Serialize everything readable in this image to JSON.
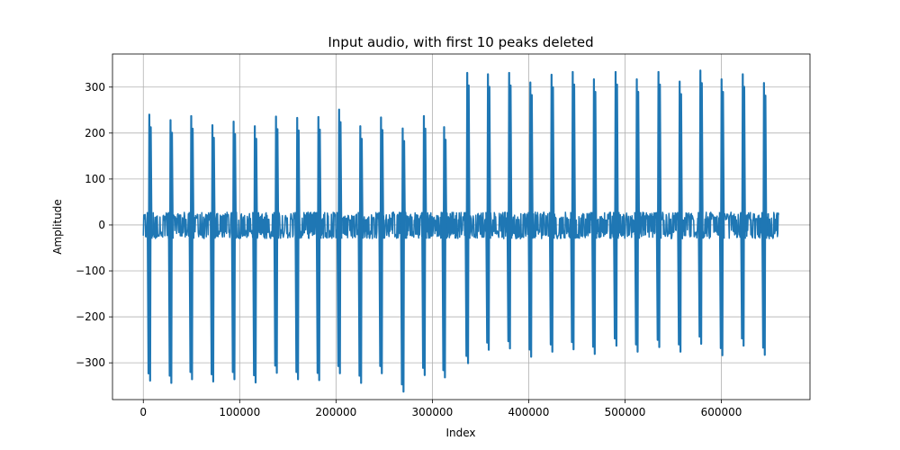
{
  "chart_data": {
    "type": "line",
    "title": "Input audio, with first 10 peaks deleted",
    "xlabel": "Index",
    "ylabel": "Amplitude",
    "xlim": [
      -32000,
      692000
    ],
    "ylim": [
      -380,
      372
    ],
    "xticks": [
      0,
      100000,
      200000,
      300000,
      400000,
      500000,
      600000
    ],
    "xtick_labels": [
      "0",
      "100000",
      "200000",
      "300000",
      "400000",
      "500000",
      "600000"
    ],
    "yticks": [
      -300,
      -200,
      -100,
      0,
      100,
      200,
      300
    ],
    "ytick_labels": [
      "−300",
      "−200",
      "−100",
      "0",
      "100",
      "200",
      "300"
    ],
    "grid": true,
    "x_range": [
      0,
      660000
    ],
    "noise_band": [
      -30,
      28
    ],
    "series": [
      {
        "color": "#1f77b4",
        "peaks": [
          {
            "x": 6500,
            "max": 240,
            "min": -323
          },
          {
            "x": 28500,
            "max": 228,
            "min": -328
          },
          {
            "x": 50000,
            "max": 237,
            "min": -320
          },
          {
            "x": 72000,
            "max": 217,
            "min": -325
          },
          {
            "x": 94000,
            "max": 225,
            "min": -320
          },
          {
            "x": 116000,
            "max": 215,
            "min": -327
          },
          {
            "x": 138000,
            "max": 236,
            "min": -306
          },
          {
            "x": 160000,
            "max": 233,
            "min": -320
          },
          {
            "x": 182000,
            "max": 235,
            "min": -322
          },
          {
            "x": 203500,
            "max": 251,
            "min": -307
          },
          {
            "x": 225500,
            "max": 215,
            "min": -328
          },
          {
            "x": 247000,
            "max": 234,
            "min": -307
          },
          {
            "x": 269500,
            "max": 210,
            "min": -347
          },
          {
            "x": 291500,
            "max": 237,
            "min": -311
          },
          {
            "x": 312500,
            "max": 213,
            "min": -316
          },
          {
            "x": 336500,
            "max": 331,
            "min": -285
          },
          {
            "x": 358000,
            "max": 328,
            "min": -256
          },
          {
            "x": 380000,
            "max": 331,
            "min": -253
          },
          {
            "x": 402000,
            "max": 310,
            "min": -271
          },
          {
            "x": 424000,
            "max": 327,
            "min": -260
          },
          {
            "x": 446000,
            "max": 333,
            "min": -255
          },
          {
            "x": 468000,
            "max": 317,
            "min": -265
          },
          {
            "x": 490500,
            "max": 333,
            "min": -247
          },
          {
            "x": 512500,
            "max": 317,
            "min": -260
          },
          {
            "x": 535000,
            "max": 333,
            "min": -250
          },
          {
            "x": 557000,
            "max": 312,
            "min": -260
          },
          {
            "x": 578500,
            "max": 336,
            "min": -243
          },
          {
            "x": 600500,
            "max": 317,
            "min": -268
          },
          {
            "x": 622500,
            "max": 328,
            "min": -247
          },
          {
            "x": 644500,
            "max": 309,
            "min": -267
          }
        ]
      }
    ]
  }
}
